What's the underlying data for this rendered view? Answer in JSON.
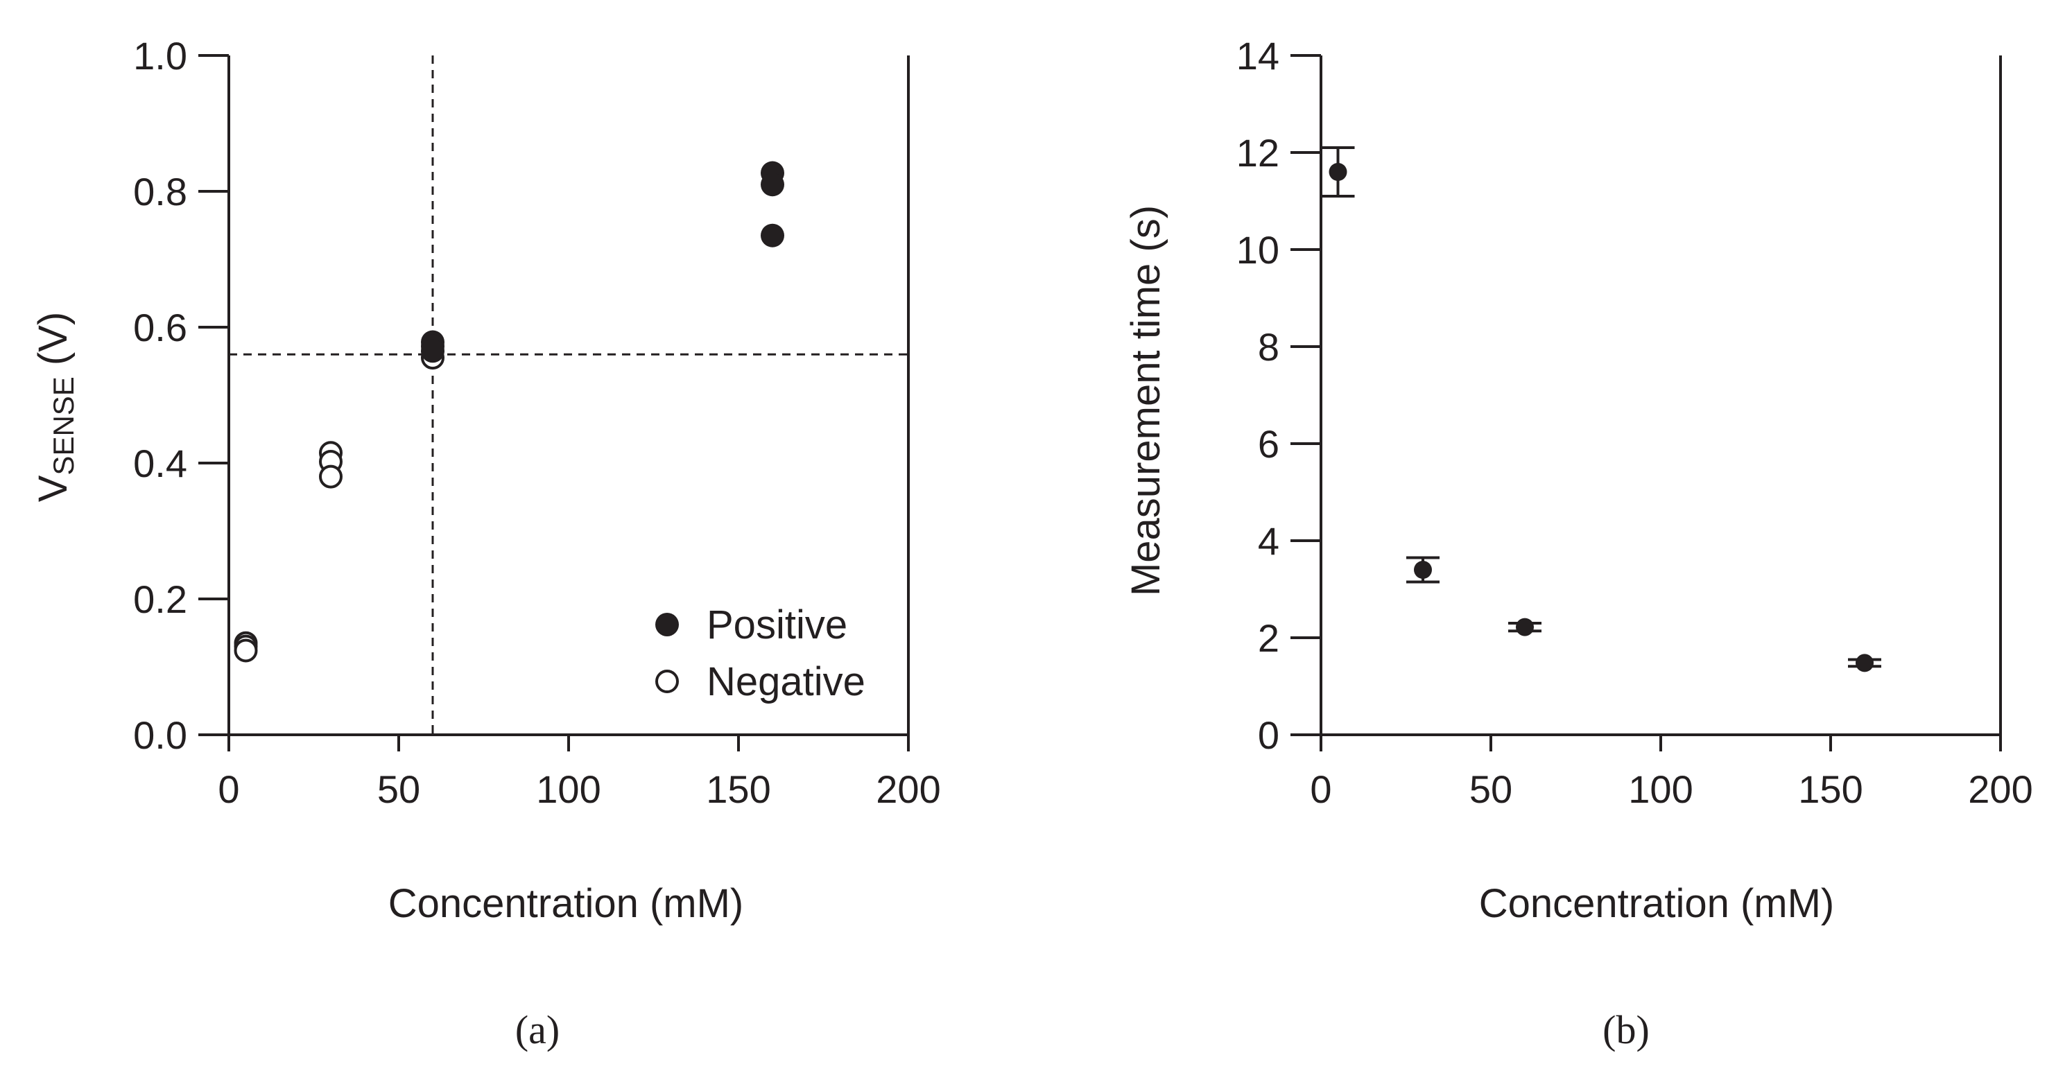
{
  "chart_data": [
    {
      "panel": "(a)",
      "type": "scatter",
      "title": "",
      "xlabel": "Concentration (mM)",
      "ylabel_main": "V",
      "ylabel_sub": "SENSE",
      "ylabel_unit": " (V)",
      "xlim": [
        0,
        200
      ],
      "ylim": [
        0,
        1.0
      ],
      "xticks": [
        0,
        50,
        100,
        150,
        200
      ],
      "xtick_labels": [
        "0",
        "50",
        "100",
        "150",
        "200"
      ],
      "yticks": [
        0,
        0.2,
        0.4,
        0.6,
        0.8,
        1.0
      ],
      "ytick_labels": [
        "0.0",
        "0.2",
        "0.4",
        "0.6",
        "0.8",
        "1.0"
      ],
      "grid": false,
      "legend_position": "bottom-right",
      "reference_lines": {
        "x": 60,
        "y": 0.56
      },
      "series": [
        {
          "name": "Positive",
          "marker": "filled-circle",
          "points": [
            {
              "x": 60,
              "y": 0.578
            },
            {
              "x": 60,
              "y": 0.572
            },
            {
              "x": 60,
              "y": 0.565
            },
            {
              "x": 160,
              "y": 0.827
            },
            {
              "x": 160,
              "y": 0.81
            },
            {
              "x": 160,
              "y": 0.735
            }
          ]
        },
        {
          "name": "Negative",
          "marker": "open-circle",
          "points": [
            {
              "x": 5,
              "y": 0.135
            },
            {
              "x": 5,
              "y": 0.13
            },
            {
              "x": 5,
              "y": 0.124
            },
            {
              "x": 30,
              "y": 0.415
            },
            {
              "x": 30,
              "y": 0.402
            },
            {
              "x": 30,
              "y": 0.38
            },
            {
              "x": 60,
              "y": 0.555
            }
          ]
        }
      ]
    },
    {
      "panel": "(b)",
      "type": "scatter",
      "title": "",
      "xlabel": "Concentration (mM)",
      "ylabel": "Measurement time (s)",
      "xlim": [
        0,
        200
      ],
      "ylim": [
        0,
        14
      ],
      "xticks": [
        0,
        50,
        100,
        150,
        200
      ],
      "xtick_labels": [
        "0",
        "50",
        "100",
        "150",
        "200"
      ],
      "yticks": [
        0,
        2,
        4,
        6,
        8,
        10,
        12,
        14
      ],
      "ytick_labels": [
        "0",
        "2",
        "4",
        "6",
        "8",
        "10",
        "12",
        "14"
      ],
      "grid": false,
      "series": [
        {
          "name": "Measurement time",
          "marker": "filled-circle",
          "points": [
            {
              "x": 5,
              "y": 11.6,
              "err": 0.5
            },
            {
              "x": 30,
              "y": 3.4,
              "err": 0.25
            },
            {
              "x": 60,
              "y": 2.22,
              "err": 0.08
            },
            {
              "x": 160,
              "y": 1.48,
              "err": 0.07
            }
          ]
        }
      ]
    }
  ]
}
